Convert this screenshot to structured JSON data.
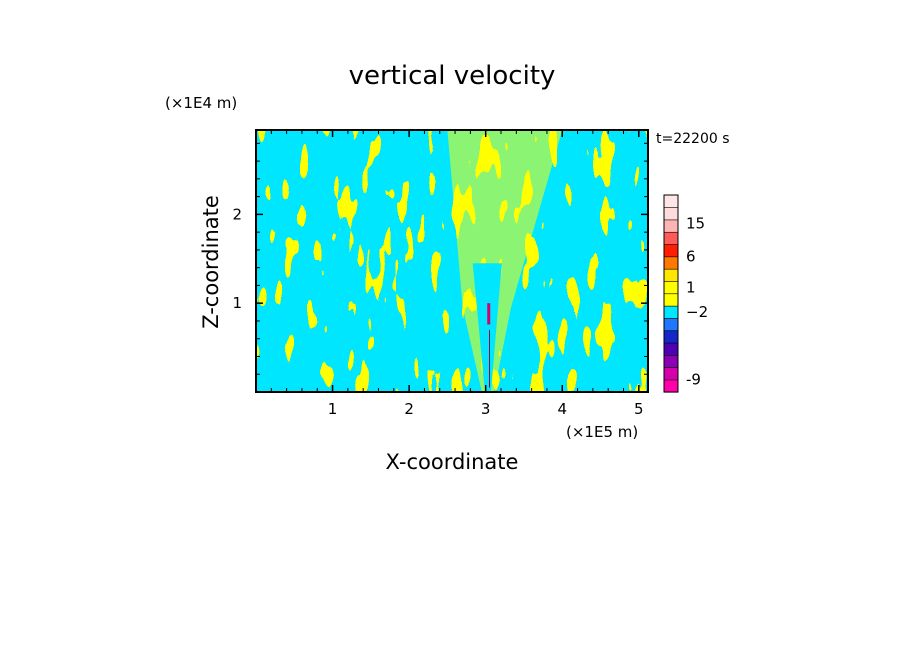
{
  "chart_data": {
    "type": "heatmap",
    "title": "vertical velocity",
    "xlabel": "X-coordinate",
    "ylabel": "Z-coordinate",
    "x_unit": "(×1E5 m)",
    "y_unit": "(×1E4 m)",
    "time_label": "t=22200 s",
    "xlim": [
      0,
      5.12
    ],
    "ylim": [
      0,
      2.95
    ],
    "x_ticks": [
      1,
      2,
      3,
      4,
      5
    ],
    "x_tick_labels": [
      "1",
      "2",
      "3",
      "4",
      "5"
    ],
    "y_ticks": [
      1,
      2
    ],
    "y_tick_labels": [
      "1",
      "2"
    ],
    "field": {
      "dominant_categories": [
        "yellow",
        "cyan"
      ],
      "pattern": "alternating wave bands, V-shaped yellow plume centred near x=3.05, narrow red/magenta column below z=1",
      "plume_center_x": 3.05
    },
    "colorbar": {
      "levels": [
        {
          "color": "#ff00aa"
        },
        {
          "color": "#d400aa"
        },
        {
          "color": "#8c00b4"
        },
        {
          "color": "#5000b4"
        },
        {
          "color": "#1428c8"
        },
        {
          "color": "#1e78ff"
        },
        {
          "color": "#00e6ff"
        },
        {
          "color": "#ffff00"
        },
        {
          "color": "#ffff00"
        },
        {
          "color": "#ffe600"
        },
        {
          "color": "#ff7800"
        },
        {
          "color": "#ff1e00"
        },
        {
          "color": "#ff5a5a"
        },
        {
          "color": "#ffb4b4"
        },
        {
          "color": "#ffdcdc"
        },
        {
          "color": "#ffe6e6"
        }
      ],
      "labeled_values": [
        {
          "label": "-9",
          "at_level": 1
        },
        {
          "label": "−2",
          "at_level": 6.5
        },
        {
          "label": "1",
          "at_level": 8.5
        },
        {
          "label": "6",
          "at_level": 11
        },
        {
          "label": "15",
          "at_level": 13.7
        }
      ]
    }
  }
}
